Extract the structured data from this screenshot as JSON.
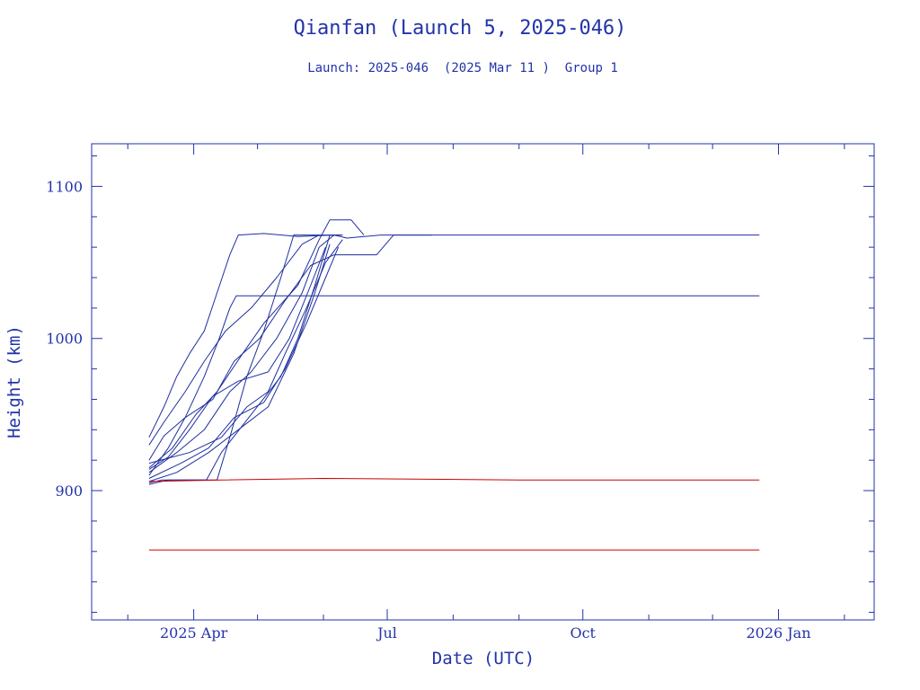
{
  "colors": {
    "axis": "#2233aa",
    "text": "#2233aa",
    "line": "#1f2fa0",
    "red": "#cc0000",
    "background": "#ffffff"
  },
  "chart_data": {
    "type": "line",
    "title": "Qianfan (Launch 5, 2025-046)",
    "subtitle": "Launch: 2025-046  (2025 Mar 11 )  Group 1",
    "xlabel": "Date (UTC)",
    "ylabel": "Height (km)",
    "xlim": [
      "2025-02-12",
      "2026-02-15"
    ],
    "ylim": [
      815,
      1128
    ],
    "grid": false,
    "x_ticks": [
      {
        "date": "2025-04-01",
        "label": "2025 Apr"
      },
      {
        "date": "2025-07-01",
        "label": "Jul"
      },
      {
        "date": "2025-10-01",
        "label": "Oct"
      },
      {
        "date": "2026-01-01",
        "label": "2026 Jan"
      }
    ],
    "x_minor_ticks": [
      "2025-03-01",
      "2025-05-01",
      "2025-06-01",
      "2025-08-01",
      "2025-09-01",
      "2025-11-01",
      "2025-12-01",
      "2026-02-01"
    ],
    "y_ticks": [
      {
        "value": 900,
        "label": "900"
      },
      {
        "value": 1000,
        "label": "1000"
      },
      {
        "value": 1100,
        "label": "1100"
      }
    ],
    "y_minor_ticks": [
      820,
      840,
      860,
      880,
      920,
      940,
      960,
      980,
      1020,
      1040,
      1060,
      1080,
      1120
    ],
    "series": [
      {
        "color": "#1f2fa0",
        "points": [
          [
            "2025-03-11",
            935
          ],
          [
            "2025-03-18",
            955
          ],
          [
            "2025-03-24",
            975
          ],
          [
            "2025-03-30",
            990
          ],
          [
            "2025-04-06",
            1005
          ],
          [
            "2025-04-12",
            1030
          ],
          [
            "2025-04-18",
            1055
          ],
          [
            "2025-04-22",
            1068
          ],
          [
            "2025-05-04",
            1069
          ],
          [
            "2025-05-20",
            1067
          ],
          [
            "2025-06-06",
            1068
          ],
          [
            "2025-06-12",
            1066
          ],
          [
            "2025-06-28",
            1068
          ],
          [
            "2025-07-20",
            1068
          ],
          [
            "2025-12-23",
            1068
          ]
        ]
      },
      {
        "color": "#1f2fa0",
        "points": [
          [
            "2025-03-11",
            910
          ],
          [
            "2025-03-20",
            928
          ],
          [
            "2025-03-28",
            948
          ],
          [
            "2025-04-06",
            975
          ],
          [
            "2025-04-13",
            1000
          ],
          [
            "2025-04-18",
            1020
          ],
          [
            "2025-04-21",
            1028
          ],
          [
            "2025-06-01",
            1028
          ],
          [
            "2025-12-23",
            1028
          ]
        ]
      },
      {
        "color": "#1f2fa0",
        "points": [
          [
            "2025-03-11",
            905
          ],
          [
            "2025-03-17",
            907
          ],
          [
            "2025-04-07",
            907
          ],
          [
            "2025-04-14",
            925
          ],
          [
            "2025-04-28",
            950
          ],
          [
            "2025-05-12",
            975
          ],
          [
            "2025-05-20",
            1000
          ],
          [
            "2025-05-28",
            1035
          ],
          [
            "2025-06-04",
            1068
          ],
          [
            "2025-06-10",
            1068
          ]
        ]
      },
      {
        "color": "#1f2fa0",
        "points": [
          [
            "2025-03-11",
            904
          ],
          [
            "2025-03-20",
            907
          ],
          [
            "2025-04-12",
            907
          ],
          [
            "2025-04-18",
            935
          ],
          [
            "2025-04-26",
            975
          ],
          [
            "2025-05-04",
            1005
          ],
          [
            "2025-05-12",
            1040
          ],
          [
            "2025-05-18",
            1068
          ],
          [
            "2025-06-10",
            1068
          ]
        ]
      },
      {
        "color": "#1f2fa0",
        "points": [
          [
            "2025-03-11",
            915
          ],
          [
            "2025-03-22",
            928
          ],
          [
            "2025-04-02",
            950
          ],
          [
            "2025-04-12",
            965
          ],
          [
            "2025-04-24",
            990
          ],
          [
            "2025-05-04",
            1010
          ],
          [
            "2025-05-20",
            1035
          ],
          [
            "2025-05-30",
            1065
          ],
          [
            "2025-06-04",
            1078
          ],
          [
            "2025-06-14",
            1078
          ],
          [
            "2025-06-20",
            1068
          ]
        ]
      },
      {
        "color": "#1f2fa0",
        "points": [
          [
            "2025-03-11",
            920
          ],
          [
            "2025-03-18",
            936
          ],
          [
            "2025-03-28",
            948
          ],
          [
            "2025-04-10",
            960
          ],
          [
            "2025-04-20",
            985
          ],
          [
            "2025-05-02",
            1000
          ],
          [
            "2025-05-14",
            1025
          ],
          [
            "2025-05-26",
            1048
          ],
          [
            "2025-06-06",
            1055
          ],
          [
            "2025-06-26",
            1055
          ],
          [
            "2025-07-04",
            1068
          ],
          [
            "2025-07-22",
            1068
          ]
        ]
      },
      {
        "color": "#1f2fa0",
        "points": [
          [
            "2025-03-11",
            912
          ],
          [
            "2025-03-24",
            925
          ],
          [
            "2025-04-06",
            940
          ],
          [
            "2025-04-18",
            965
          ],
          [
            "2025-04-28",
            978
          ],
          [
            "2025-05-10",
            1000
          ],
          [
            "2025-05-22",
            1030
          ],
          [
            "2025-05-30",
            1060
          ],
          [
            "2025-06-06",
            1068
          ]
        ]
      },
      {
        "color": "#1f2fa0",
        "points": [
          [
            "2025-03-11",
            918
          ],
          [
            "2025-03-30",
            925
          ],
          [
            "2025-04-14",
            935
          ],
          [
            "2025-04-26",
            955
          ],
          [
            "2025-05-06",
            965
          ],
          [
            "2025-05-14",
            990
          ],
          [
            "2025-05-24",
            1020
          ],
          [
            "2025-06-02",
            1050
          ],
          [
            "2025-06-10",
            1065
          ]
        ]
      },
      {
        "color": "#1f2fa0",
        "points": [
          [
            "2025-03-11",
            908
          ],
          [
            "2025-03-26",
            918
          ],
          [
            "2025-04-08",
            928
          ],
          [
            "2025-04-20",
            948
          ],
          [
            "2025-05-04",
            958
          ],
          [
            "2025-05-14",
            980
          ],
          [
            "2025-05-24",
            1010
          ],
          [
            "2025-06-02",
            1040
          ],
          [
            "2025-06-08",
            1060
          ]
        ]
      },
      {
        "color": "#1f2fa0",
        "points": [
          [
            "2025-03-11",
            930
          ],
          [
            "2025-03-18",
            945
          ],
          [
            "2025-03-28",
            965
          ],
          [
            "2025-04-06",
            985
          ],
          [
            "2025-04-16",
            1005
          ],
          [
            "2025-04-28",
            1020
          ],
          [
            "2025-05-10",
            1040
          ],
          [
            "2025-05-22",
            1062
          ],
          [
            "2025-05-30",
            1068
          ]
        ]
      },
      {
        "color": "#1f2fa0",
        "points": [
          [
            "2025-03-11",
            914
          ],
          [
            "2025-03-20",
            922
          ],
          [
            "2025-03-30",
            940
          ],
          [
            "2025-04-10",
            962
          ],
          [
            "2025-04-22",
            972
          ],
          [
            "2025-05-06",
            978
          ],
          [
            "2025-05-16",
            1000
          ],
          [
            "2025-05-26",
            1035
          ],
          [
            "2025-06-02",
            1060
          ]
        ]
      },
      {
        "color": "#1f2fa0",
        "points": [
          [
            "2025-03-11",
            906
          ],
          [
            "2025-03-24",
            912
          ],
          [
            "2025-04-08",
            925
          ],
          [
            "2025-04-22",
            940
          ],
          [
            "2025-05-06",
            955
          ],
          [
            "2025-05-18",
            990
          ],
          [
            "2025-05-28",
            1030
          ],
          [
            "2025-06-04",
            1062
          ]
        ]
      },
      {
        "color": "#cc0000",
        "points": [
          [
            "2025-03-11",
            906
          ],
          [
            "2025-04-14",
            907
          ],
          [
            "2025-06-01",
            908
          ],
          [
            "2025-09-01",
            907
          ],
          [
            "2025-12-23",
            907
          ]
        ]
      },
      {
        "color": "#cc0000",
        "points": [
          [
            "2025-03-11",
            861
          ],
          [
            "2025-12-23",
            861
          ]
        ]
      }
    ]
  }
}
